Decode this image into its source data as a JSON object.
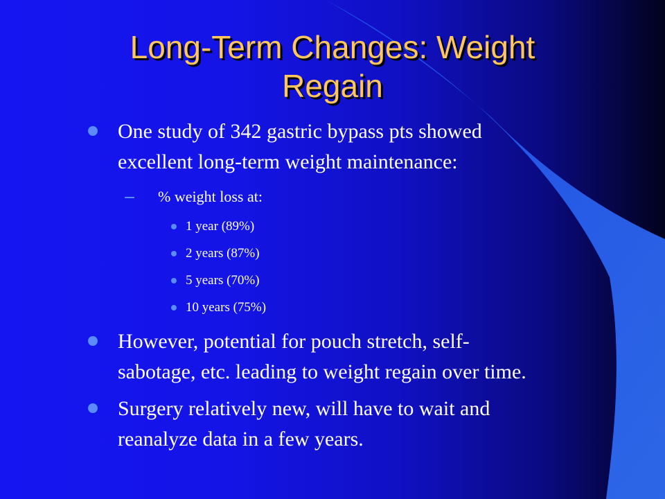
{
  "slide": {
    "title_line1": "Long-Term Changes: Weight",
    "title_line2": "Regain",
    "bullets": [
      {
        "line1": "One study of 342 gastric bypass pts showed",
        "line2": "excellent long-term weight maintenance:"
      },
      {
        "line1": "However, potential for pouch stretch, self-",
        "line2": "sabotage, etc. leading to weight regain over time."
      },
      {
        "line1": "Surgery relatively new, will have to wait and",
        "line2": "reanalyze data in a few years."
      }
    ],
    "sub_bullet": "% weight loss at:",
    "sub_sub_bullets": [
      "1 year (89%)",
      "2 years (87%)",
      "5 years (70%)",
      "10 years (75%)"
    ]
  },
  "colors": {
    "title": "#ffc65e",
    "bullet_marker": "#5a8cff",
    "swoosh": "#2f6cf0",
    "text": "#ffffff"
  }
}
